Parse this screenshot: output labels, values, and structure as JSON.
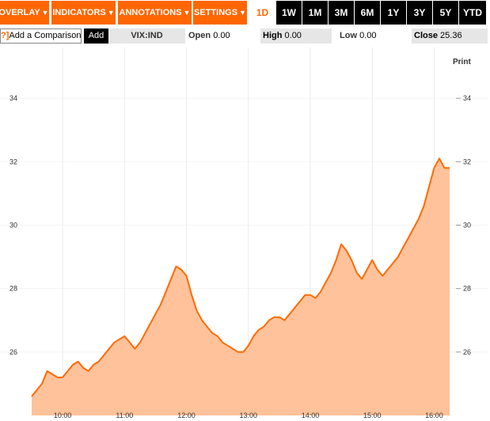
{
  "toolbar": {
    "menus": [
      {
        "label": "OVERLAY",
        "name": "overlay-menu-button"
      },
      {
        "label": "INDICATORS",
        "name": "indicators-menu-button"
      },
      {
        "label": "ANNOTATIONS",
        "name": "annotations-menu-button"
      },
      {
        "label": "SETTINGS",
        "name": "settings-menu-button"
      }
    ],
    "active_range": "1D",
    "ranges": [
      "1W",
      "1M",
      "3M",
      "6M",
      "1Y",
      "3Y",
      "5Y",
      "YTD"
    ]
  },
  "comparison": {
    "help_glyph": "?]",
    "label": "Add a Comparison",
    "add_label": "Add"
  },
  "quote": {
    "ticker": "VIX:IND",
    "open_label": "Open",
    "open_value": "0.00",
    "high_label": "High",
    "high_value": "0.00",
    "low_label": "Low",
    "low_value": "0.00",
    "close_label": "Close",
    "close_value": "25.36"
  },
  "print_label": "Print",
  "colors": {
    "accent": "#ff6600",
    "line": "#ff6a00",
    "fill": "#ffc29a",
    "range_bg": "#000000"
  },
  "chart_data": {
    "type": "area",
    "ylim": [
      24.0,
      35.6
    ],
    "yticks": [
      26,
      28,
      30,
      32,
      34
    ],
    "xticks": [
      "10:00",
      "11:00",
      "12:00",
      "13:00",
      "14:00",
      "15:00",
      "16:00"
    ],
    "series": [
      {
        "x": [
          "09:30",
          "09:35",
          "09:40",
          "09:45",
          "09:50",
          "09:55",
          "10:00",
          "10:05",
          "10:10",
          "10:15",
          "10:20",
          "10:25",
          "10:30",
          "10:35",
          "10:40",
          "10:45",
          "10:50",
          "10:55",
          "11:00",
          "11:05",
          "11:10",
          "11:15",
          "11:20",
          "11:25",
          "11:30",
          "11:35",
          "11:40",
          "11:45",
          "11:50",
          "11:55",
          "12:00",
          "12:05",
          "12:10",
          "12:15",
          "12:20",
          "12:25",
          "12:30",
          "12:35",
          "12:40",
          "12:45",
          "12:50",
          "12:55",
          "13:00",
          "13:05",
          "13:10",
          "13:15",
          "13:20",
          "13:25",
          "13:30",
          "13:35",
          "13:40",
          "13:45",
          "13:50",
          "13:55",
          "14:00",
          "14:05",
          "14:10",
          "14:15",
          "14:20",
          "14:25",
          "14:30",
          "14:35",
          "14:40",
          "14:45",
          "14:50",
          "14:55",
          "15:00",
          "15:05",
          "15:10",
          "15:15",
          "15:20",
          "15:25",
          "15:30",
          "15:35",
          "15:40",
          "15:45",
          "15:50",
          "15:55",
          "16:00",
          "16:05",
          "16:10",
          "16:15"
        ],
        "values": [
          24.6,
          24.8,
          25.0,
          25.4,
          25.3,
          25.2,
          25.2,
          25.4,
          25.6,
          25.7,
          25.5,
          25.4,
          25.6,
          25.7,
          25.9,
          26.1,
          26.3,
          26.4,
          26.5,
          26.3,
          26.1,
          26.3,
          26.6,
          26.9,
          27.2,
          27.5,
          27.9,
          28.3,
          28.7,
          28.6,
          28.4,
          27.8,
          27.3,
          27.0,
          26.8,
          26.6,
          26.5,
          26.3,
          26.2,
          26.1,
          26.0,
          26.0,
          26.2,
          26.5,
          26.7,
          26.8,
          27.0,
          27.1,
          27.1,
          27.0,
          27.2,
          27.4,
          27.6,
          27.8,
          27.8,
          27.7,
          27.9,
          28.2,
          28.5,
          28.9,
          29.4,
          29.2,
          28.9,
          28.5,
          28.3,
          28.6,
          28.9,
          28.6,
          28.4,
          28.6,
          28.8,
          29.0,
          29.3,
          29.6,
          29.9,
          30.2,
          30.6,
          31.2,
          31.8,
          32.1,
          31.8,
          31.8
        ]
      }
    ]
  }
}
